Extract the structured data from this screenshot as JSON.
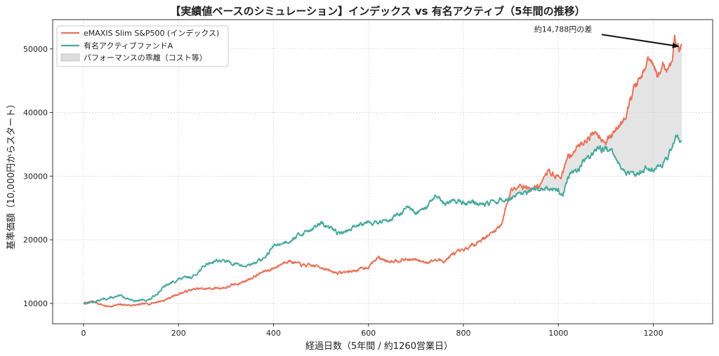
{
  "chart_data": {
    "type": "line",
    "title": "【実績値ベースのシミュレーション】インデックス vs 有名アクティブ（5年間の推移）",
    "xlabel": "経過日数（5年間 / 約1260営業日）",
    "ylabel": "基準価額（10,000円からスタート）",
    "xlim": [
      -65,
      1325
    ],
    "ylim": [
      6800,
      54600
    ],
    "x_ticks": [
      0,
      200,
      400,
      600,
      800,
      1000,
      1200
    ],
    "y_ticks": [
      10000,
      20000,
      30000,
      40000,
      50000
    ],
    "x_tick_labels": [
      "0",
      "200",
      "400",
      "600",
      "800",
      "1000",
      "1200"
    ],
    "y_tick_labels": [
      "10000",
      "20000",
      "30000",
      "40000",
      "50000"
    ],
    "grid": true,
    "legend_position": "top-left",
    "legend": {
      "series_index": "eMAXIS Slim S&P500 (インデックス)",
      "series_active": "有名アクティブファンドA",
      "fill": "パフォーマンスの乖離（コスト等）"
    },
    "series": [
      {
        "name": "eMAXIS Slim S&P500 (インデックス)",
        "color": "#e8735a",
        "x": [
          0,
          20,
          50,
          80,
          110,
          140,
          170,
          200,
          230,
          260,
          300,
          340,
          380,
          400,
          430,
          460,
          500,
          520,
          540,
          560,
          580,
          600,
          620,
          640,
          660,
          680,
          700,
          720,
          740,
          760,
          780,
          800,
          820,
          840,
          860,
          880,
          900,
          910,
          920,
          940,
          960,
          980,
          1000,
          1010,
          1020,
          1030,
          1040,
          1060,
          1080,
          1100,
          1120,
          1140,
          1160,
          1180,
          1190,
          1200,
          1210,
          1220,
          1230,
          1240,
          1245,
          1250,
          1255,
          1260
        ],
        "y": [
          10000,
          10300,
          9500,
          9800,
          9700,
          10000,
          10500,
          11500,
          12200,
          12300,
          12500,
          13500,
          15000,
          15500,
          16800,
          16000,
          15800,
          15000,
          14800,
          15000,
          15300,
          15800,
          17200,
          16700,
          16800,
          16900,
          16800,
          16500,
          16800,
          16700,
          17800,
          18200,
          19200,
          20200,
          21000,
          22500,
          27800,
          28500,
          28800,
          28000,
          28500,
          30800,
          29800,
          30500,
          33000,
          33800,
          34500,
          36000,
          37000,
          35500,
          37000,
          39500,
          44000,
          46000,
          48500,
          47000,
          45500,
          47500,
          46800,
          48500,
          52200,
          51000,
          49800,
          50500
        ]
      },
      {
        "name": "有名アクティブファンドA",
        "color": "#4aaa9e",
        "x": [
          0,
          20,
          50,
          80,
          110,
          140,
          170,
          200,
          230,
          260,
          280,
          300,
          340,
          380,
          400,
          430,
          460,
          500,
          520,
          540,
          560,
          580,
          600,
          620,
          640,
          660,
          680,
          700,
          720,
          740,
          760,
          780,
          800,
          820,
          840,
          860,
          880,
          900,
          920,
          940,
          960,
          980,
          1000,
          1010,
          1020,
          1040,
          1060,
          1080,
          1100,
          1120,
          1130,
          1150,
          1170,
          1190,
          1200,
          1210,
          1220,
          1230,
          1240,
          1250,
          1260
        ],
        "y": [
          10000,
          10200,
          10800,
          11100,
          10400,
          10600,
          12600,
          13800,
          14200,
          16200,
          16800,
          16600,
          15800,
          17000,
          19000,
          19800,
          21000,
          22500,
          21800,
          21000,
          21500,
          22500,
          23000,
          22500,
          23200,
          23800,
          25000,
          24000,
          24800,
          26800,
          25500,
          26300,
          25800,
          26000,
          25500,
          25800,
          26200,
          26500,
          27000,
          27500,
          27800,
          28300,
          27800,
          27000,
          30000,
          31000,
          33000,
          34000,
          34500,
          33000,
          31500,
          30000,
          30800,
          31500,
          31200,
          31800,
          32000,
          33000,
          35000,
          36500,
          35500
        ]
      }
    ],
    "annotation": {
      "text": "約14,788円の差",
      "point": [
        1258,
        50300
      ],
      "text_at": [
        1010,
        52700
      ]
    }
  }
}
